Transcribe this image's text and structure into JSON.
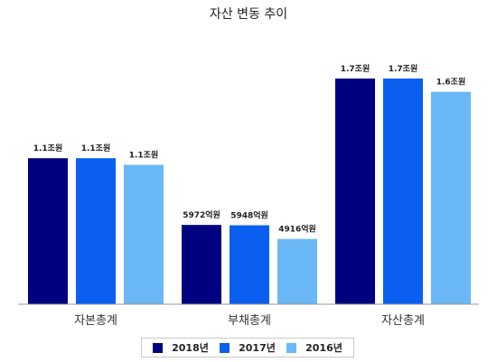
{
  "chart_data": {
    "type": "bar",
    "title": "자산 변동 추이",
    "xlabel": "",
    "ylabel": "",
    "categories": [
      "자본총계",
      "부채총계",
      "자산총계"
    ],
    "series": [
      {
        "name": "2018년",
        "color": "#000080",
        "values": [
          1.1,
          0.5972,
          1.7
        ],
        "labels": [
          "1.1조원",
          "5972억원",
          "1.7조원"
        ]
      },
      {
        "name": "2017년",
        "color": "#0a5ff0",
        "values": [
          1.1,
          0.5948,
          1.7
        ],
        "labels": [
          "1.1조원",
          "5948억원",
          "1.7조원"
        ]
      },
      {
        "name": "2016년",
        "color": "#6ab8f5",
        "values": [
          1.05,
          0.4916,
          1.6
        ],
        "labels": [
          "1.1조원",
          "4916억원",
          "1.6조원"
        ]
      }
    ],
    "ylim": [
      0,
      1.9
    ],
    "grid": false,
    "legend_position": "bottom"
  }
}
